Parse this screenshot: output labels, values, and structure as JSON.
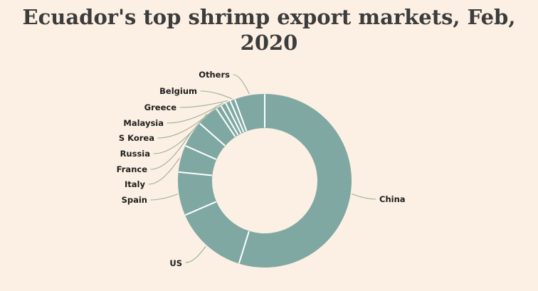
{
  "title": {
    "line1": "Ecuador's top shrimp export markets, Feb,",
    "line2": "2020"
  },
  "chart_data": {
    "type": "pie",
    "subtype": "donut",
    "title": "Ecuador's top shrimp export markets, Feb, 2020",
    "categories": [
      "China",
      "US",
      "Spain",
      "Italy",
      "France",
      "Russia",
      "S Korea",
      "Malaysia",
      "Greece",
      "Belgium",
      "Others"
    ],
    "values": [
      54.8,
      13.7,
      8.1,
      5.0,
      4.9,
      4.1,
      1.0,
      1.0,
      0.9,
      0.9,
      5.6
    ],
    "values_unit": "percent share (estimated from arc angles; no numeric labels shown in chart)",
    "start_angle_deg": 0,
    "direction": "clockwise",
    "legend_position": "none",
    "label_style": "outside callout labels with curved leader lines",
    "colors": {
      "slice": "#7FA8A3",
      "separator": "#FFFFFF",
      "leader_line": "#9DAF99",
      "label_text": "#1F1F1F",
      "title_text": "#3C3C3C",
      "background": "#FBF0E3"
    }
  }
}
